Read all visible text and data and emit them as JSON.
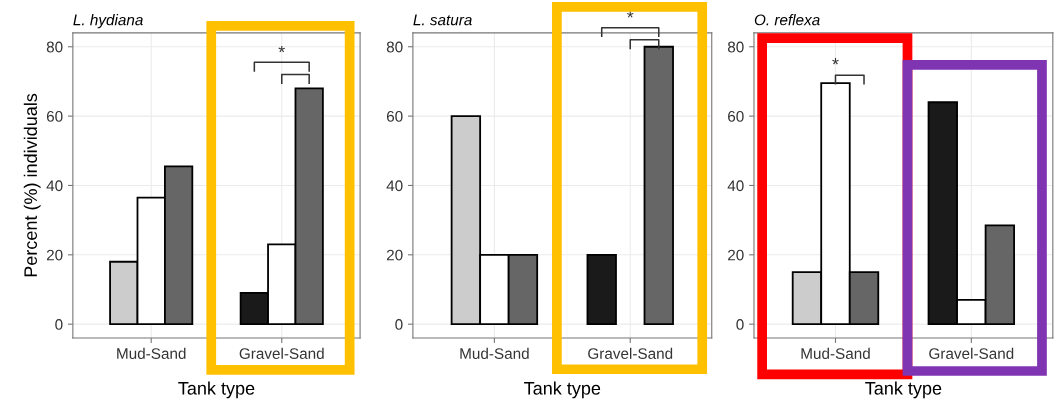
{
  "chart_data": [
    {
      "type": "bar",
      "title": "L. hydiana",
      "xlabel": "Tank type",
      "ylabel": "Percent (%) individuals",
      "categories": [
        "Mud-Sand",
        "Gravel-Sand"
      ],
      "ylim": [
        -4,
        84
      ],
      "yticks": [
        0,
        20,
        40,
        60,
        80
      ],
      "grid": true,
      "series": [
        {
          "colors": [
            "#cccccc",
            "#1a1a1a"
          ],
          "values": [
            18,
            9
          ]
        },
        {
          "color": "#ffffff",
          "values": [
            36.5,
            23
          ]
        },
        {
          "color": "#666666",
          "values": [
            45.5,
            68
          ]
        }
      ],
      "annotations": [
        "*"
      ]
    },
    {
      "type": "bar",
      "title": "L. satura",
      "xlabel": "Tank type",
      "categories": [
        "Mud-Sand",
        "Gravel-Sand"
      ],
      "ylim": [
        -4,
        84
      ],
      "yticks": [
        0,
        20,
        40,
        60,
        80
      ],
      "grid": true,
      "series": [
        {
          "colors": [
            "#cccccc",
            "#1a1a1a"
          ],
          "values": [
            60,
            20
          ]
        },
        {
          "color": "#ffffff",
          "values": [
            20,
            0
          ]
        },
        {
          "color": "#666666",
          "values": [
            20,
            80
          ]
        }
      ],
      "annotations": [
        "*"
      ]
    },
    {
      "type": "bar",
      "title": "O. reflexa",
      "xlabel": "Tank type",
      "categories": [
        "Mud-Sand",
        "Gravel-Sand"
      ],
      "ylim": [
        -4,
        84
      ],
      "yticks": [
        0,
        20,
        40,
        60,
        80
      ],
      "grid": true,
      "series": [
        {
          "colors": [
            "#cccccc",
            "#1a1a1a"
          ],
          "values": [
            15,
            64
          ]
        },
        {
          "color": "#ffffff",
          "values": [
            69.5,
            7
          ]
        },
        {
          "color": "#666666",
          "values": [
            15,
            28.5
          ]
        }
      ],
      "annotations": [
        "*"
      ]
    }
  ]
}
